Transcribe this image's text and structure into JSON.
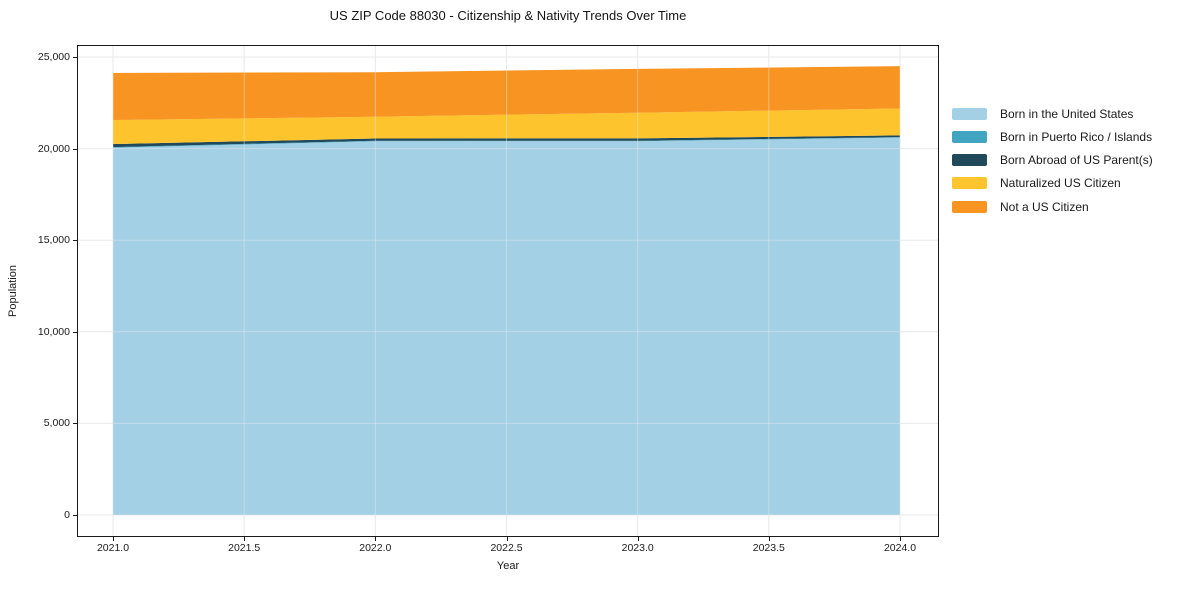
{
  "chart_data": {
    "type": "area",
    "stacked": true,
    "title": "US ZIP Code 88030 - Citizenship & Nativity Trends Over Time",
    "xlabel": "Year",
    "ylabel": "Population",
    "x": [
      2021,
      2022,
      2023,
      2024
    ],
    "series": [
      {
        "name": "Born in the United States",
        "color": "#a3d0e5",
        "values": [
          20050,
          20400,
          20400,
          20600
        ]
      },
      {
        "name": "Born in Puerto Rico / Islands",
        "color": "#41a5c2",
        "values": [
          30,
          30,
          30,
          30
        ]
      },
      {
        "name": "Born Abroad of US Parent(s)",
        "color": "#20495c",
        "values": [
          170,
          120,
          130,
          90
        ]
      },
      {
        "name": "Naturalized US Citizen",
        "color": "#fdc42d",
        "values": [
          1310,
          1190,
          1400,
          1470
        ]
      },
      {
        "name": "Not a US Citizen",
        "color": "#f79422",
        "values": [
          2570,
          2430,
          2390,
          2310
        ]
      }
    ],
    "x_ticks": [
      2021.0,
      2021.5,
      2022.0,
      2022.5,
      2023.0,
      2023.5,
      2024.0
    ],
    "x_tick_labels": [
      "2021.0",
      "2021.5",
      "2022.0",
      "2022.5",
      "2023.0",
      "2023.5",
      "2024.0"
    ],
    "y_ticks": [
      0,
      5000,
      10000,
      15000,
      20000,
      25000
    ],
    "y_tick_labels": [
      "0",
      "5,000",
      "10,000",
      "15,000",
      "20,000",
      "25,000"
    ],
    "xlim": [
      2021,
      2024
    ],
    "ylim": [
      0,
      25000
    ],
    "grid": true,
    "legend_position": "right",
    "background": "#ffffff",
    "grid_color": "#e9e9e9",
    "spine_color": "#1a1a1a"
  }
}
